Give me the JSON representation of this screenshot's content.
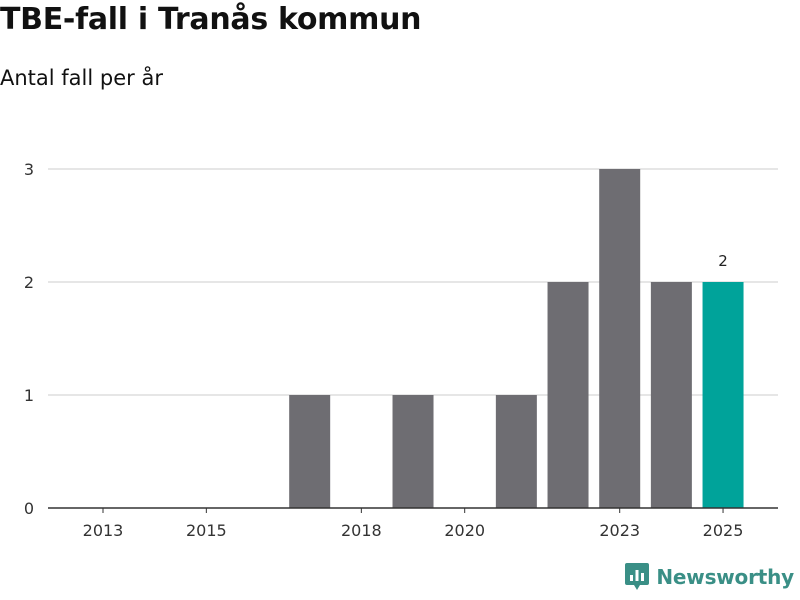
{
  "chart_data": {
    "type": "bar",
    "title": "TBE-fall i Tranås kommun",
    "subtitle": "Antal fall per år",
    "categories": [
      "2013",
      "2014",
      "2015",
      "2016",
      "2017",
      "2018",
      "2019",
      "2020",
      "2021",
      "2022",
      "2023",
      "2024",
      "2025"
    ],
    "values": [
      0,
      0,
      0,
      0,
      1,
      0,
      1,
      0,
      1,
      2,
      3,
      2,
      2
    ],
    "x_tick_labels": [
      "2013",
      "2015",
      "2018",
      "2020",
      "2023",
      "2025"
    ],
    "y_ticks": [
      0,
      1,
      2,
      3
    ],
    "ylim": [
      0,
      3
    ],
    "highlight_category": "2025",
    "data_labels": [
      {
        "category": "2025",
        "text": "2"
      }
    ],
    "xlabel": "",
    "ylabel": "",
    "grid": true,
    "colors": {
      "bar": "#6e6d72",
      "highlight": "#00a39a",
      "grid": "#dddddd",
      "axis": "#333333"
    }
  },
  "branding": {
    "logo_text": "Newsworthy",
    "logo_color": "#3a8f86",
    "logo_icon": "bar-chart-badge-icon"
  }
}
